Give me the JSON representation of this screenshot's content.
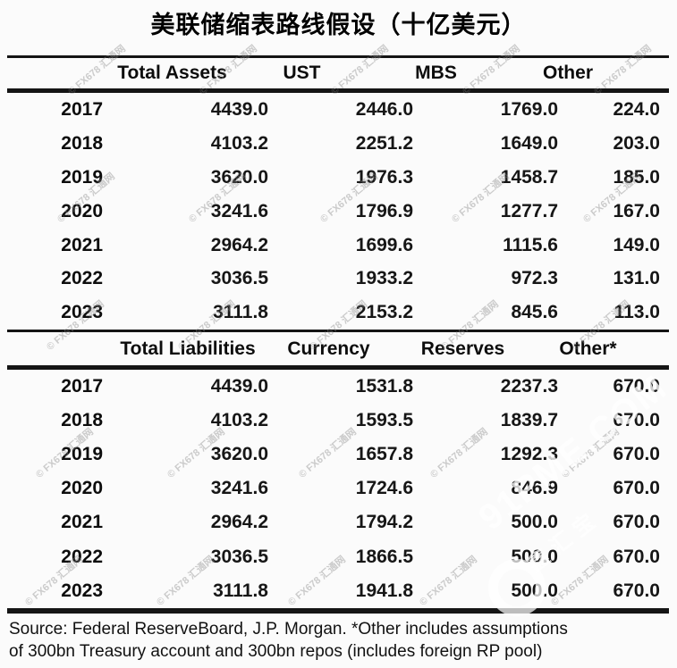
{
  "title": "美联储缩表路线假设（十亿美元）",
  "source_note": {
    "line1": "Source: Federal ReserveBoard, J.P. Morgan. *Other includes assumptions",
    "line2": "of 300bn Treasury account and 300bn repos (includes foreign RP pool)"
  },
  "watermark": {
    "small_text": "© FX678 汇通网",
    "big_text": "91PME.COM",
    "big_sub": "鑫汇宝"
  },
  "colors": {
    "rule": "#151515",
    "text": "#0d0d0d",
    "watermark_gray": "#878787"
  },
  "chart_data": [
    {
      "type": "table",
      "section": "assets",
      "columns": [
        "Total Assets",
        "UST",
        "MBS",
        "Other"
      ],
      "row_label_header": "",
      "rows": [
        {
          "year": "2017",
          "values": [
            4439.0,
            2446.0,
            1769.0,
            224.0
          ]
        },
        {
          "year": "2018",
          "values": [
            4103.2,
            2251.2,
            1649.0,
            203.0
          ]
        },
        {
          "year": "2019",
          "values": [
            3620.0,
            1976.3,
            1458.7,
            185.0
          ]
        },
        {
          "year": "2020",
          "values": [
            3241.6,
            1796.9,
            1277.7,
            167.0
          ]
        },
        {
          "year": "2021",
          "values": [
            2964.2,
            1699.6,
            1115.6,
            149.0
          ]
        },
        {
          "year": "2022",
          "values": [
            3036.5,
            1933.2,
            972.3,
            131.0
          ]
        },
        {
          "year": "2023",
          "values": [
            3111.8,
            2153.2,
            845.6,
            113.0
          ]
        }
      ],
      "value_format": "1-decimal",
      "unit": "billion USD"
    },
    {
      "type": "table",
      "section": "liabilities",
      "columns": [
        "Total Liabilities",
        "Currency",
        "Reserves",
        "Other*"
      ],
      "row_label_header": "",
      "rows": [
        {
          "year": "2017",
          "values": [
            4439.0,
            1531.8,
            2237.3,
            670.0
          ]
        },
        {
          "year": "2018",
          "values": [
            4103.2,
            1593.5,
            1839.7,
            670.0
          ]
        },
        {
          "year": "2019",
          "values": [
            3620.0,
            1657.8,
            1292.3,
            670.0
          ]
        },
        {
          "year": "2020",
          "values": [
            3241.6,
            1724.6,
            846.9,
            670.0
          ]
        },
        {
          "year": "2021",
          "values": [
            2964.2,
            1794.2,
            500.0,
            670.0
          ]
        },
        {
          "year": "2022",
          "values": [
            3036.5,
            1866.5,
            500.0,
            670.0
          ]
        },
        {
          "year": "2023",
          "values": [
            3111.8,
            1941.8,
            500.0,
            670.0
          ]
        }
      ],
      "value_format": "1-decimal",
      "unit": "billion USD"
    }
  ]
}
